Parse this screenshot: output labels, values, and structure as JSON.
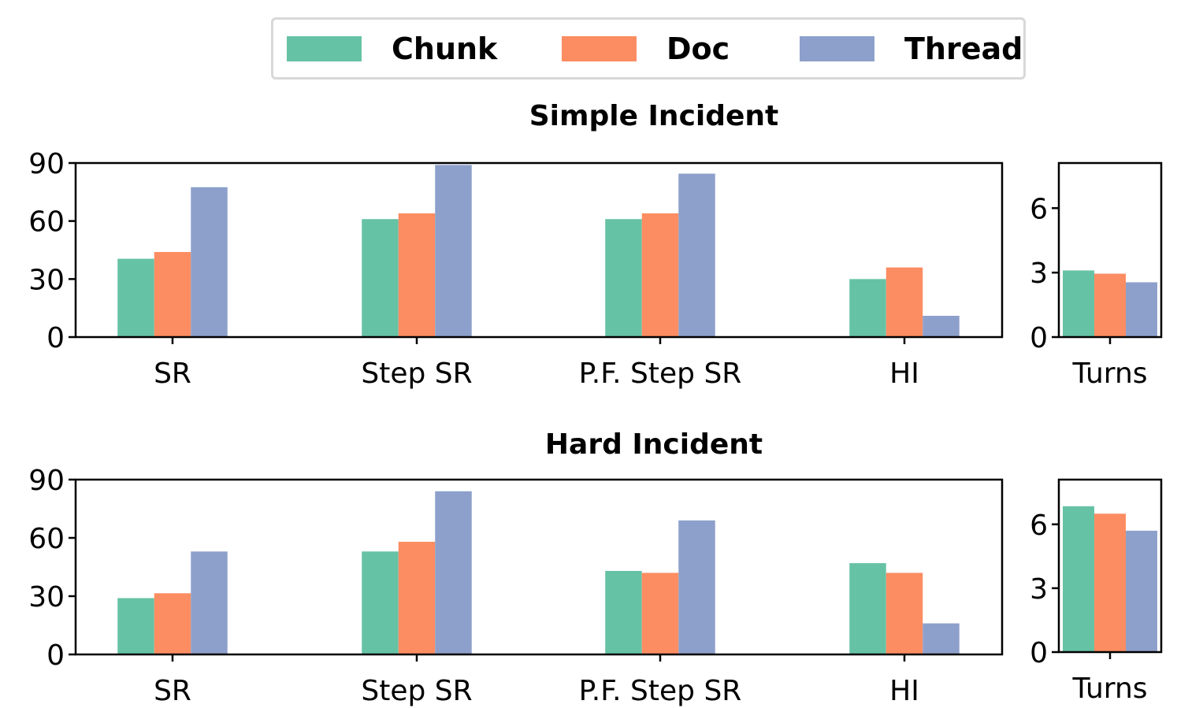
{
  "legend": [
    {
      "name": "Chunk",
      "color": "#66c2a5"
    },
    {
      "name": "Doc",
      "color": "#fc8d62"
    },
    {
      "name": "Thread",
      "color": "#8da0cb"
    }
  ],
  "chart_data": [
    {
      "type": "bar",
      "title": "Simple Incident",
      "categories": [
        "SR",
        "Step SR",
        "P.F. Step SR",
        "HI"
      ],
      "series": [
        {
          "name": "Chunk",
          "values": [
            40.5,
            61,
            61,
            30
          ]
        },
        {
          "name": "Doc",
          "values": [
            44,
            64,
            64,
            36
          ]
        },
        {
          "name": "Thread",
          "values": [
            77.5,
            89,
            84.5,
            11
          ]
        }
      ],
      "ylim": [
        0,
        90
      ],
      "yticks": [
        0,
        30,
        60,
        90
      ]
    },
    {
      "type": "bar",
      "categories": [
        "Turns"
      ],
      "series": [
        {
          "name": "Chunk",
          "values": [
            3.1
          ]
        },
        {
          "name": "Doc",
          "values": [
            2.95
          ]
        },
        {
          "name": "Thread",
          "values": [
            2.55
          ]
        }
      ],
      "ylim": [
        0,
        8.1
      ],
      "yticks": [
        0,
        3,
        6
      ]
    },
    {
      "type": "bar",
      "title": "Hard Incident",
      "categories": [
        "SR",
        "Step SR",
        "P.F. Step SR",
        "HI"
      ],
      "series": [
        {
          "name": "Chunk",
          "values": [
            29,
            53,
            43,
            47
          ]
        },
        {
          "name": "Doc",
          "values": [
            31.5,
            58,
            42,
            42
          ]
        },
        {
          "name": "Thread",
          "values": [
            53,
            84,
            69,
            16
          ]
        }
      ],
      "ylim": [
        0,
        90
      ],
      "yticks": [
        0,
        30,
        60,
        90
      ]
    },
    {
      "type": "bar",
      "categories": [
        "Turns"
      ],
      "series": [
        {
          "name": "Chunk",
          "values": [
            6.85
          ]
        },
        {
          "name": "Doc",
          "values": [
            6.5
          ]
        },
        {
          "name": "Thread",
          "values": [
            5.7
          ]
        }
      ],
      "ylim": [
        0,
        8.1
      ],
      "yticks": [
        0,
        3,
        6
      ]
    }
  ]
}
